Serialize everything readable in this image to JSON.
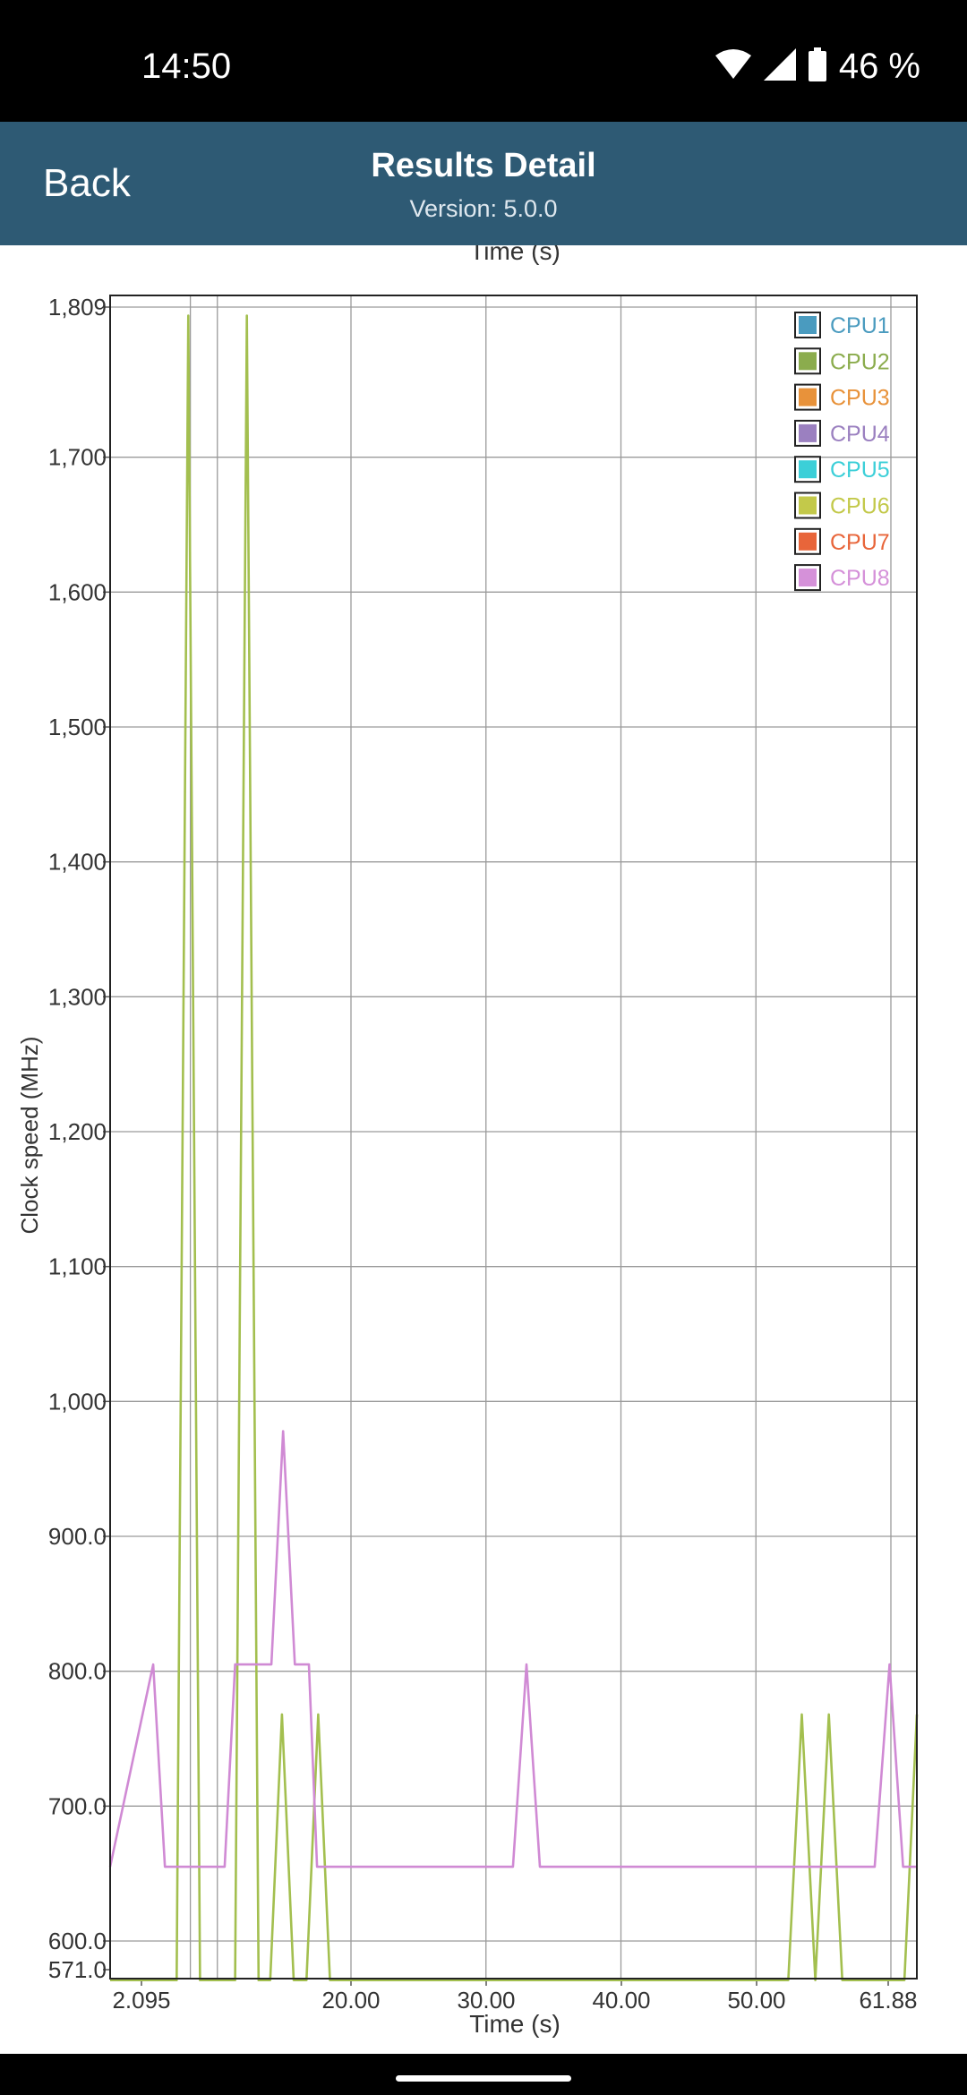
{
  "status": {
    "time": "14:50",
    "battery": "46 %"
  },
  "appbar": {
    "back_label": "Back",
    "title": "Results Detail",
    "subtitle": "Version: 5.0.0"
  },
  "chart_data": {
    "type": "line",
    "top_label": "Time (s)",
    "xlabel": "Time (s)",
    "ylabel": "Clock speed (MHz)",
    "xlim": [
      2.095,
      61.88
    ],
    "ylim": [
      571.0,
      1809
    ],
    "x_ticks": [
      "2.095",
      "20.00",
      "30.00",
      "40.00",
      "50.00",
      "61.88"
    ],
    "y_ticks": [
      "571.0",
      "600.0",
      "700.0",
      "800.0",
      "900.0",
      "1,000",
      "1,100",
      "1,200",
      "1,300",
      "1,400",
      "1,500",
      "1,600",
      "1,700",
      "1,809"
    ],
    "grid": true,
    "legend_position": "top-right",
    "legend": [
      {
        "name": "CPU1",
        "color": "#4a9bbf"
      },
      {
        "name": "CPU2",
        "color": "#8bac4d"
      },
      {
        "name": "CPU3",
        "color": "#e8923a"
      },
      {
        "name": "CPU4",
        "color": "#9b80c0"
      },
      {
        "name": "CPU5",
        "color": "#3ccfd8"
      },
      {
        "name": "CPU6",
        "color": "#c3c94a"
      },
      {
        "name": "CPU7",
        "color": "#e8653a"
      },
      {
        "name": "CPU8",
        "color": "#d591d9"
      }
    ],
    "series": [
      {
        "name": "CPU2",
        "color": "#a3bf4f",
        "x": [
          2.095,
          5.1,
          6.1,
          7.1,
          8.1,
          10.1,
          11.1,
          12.1,
          13.1,
          14.1,
          15.1,
          16.2,
          17.2,
          18.2,
          52.4,
          53.4,
          54.4,
          55.4,
          56.4,
          61.0,
          61.88
        ],
        "y": [
          571,
          571,
          1805,
          571,
          571,
          571,
          1805,
          571,
          571,
          768,
          571,
          571,
          768,
          571,
          571,
          768,
          571,
          768,
          571,
          571,
          768
        ]
      },
      {
        "name": "CPU8",
        "color": "#d08ad4",
        "x": [
          2.095,
          3.1,
          4.1,
          7.1,
          9.2,
          10.1,
          13.2,
          14.2,
          15.2,
          16.4,
          17.1,
          32.0,
          33.0,
          34.0,
          58.8,
          59.9,
          60.9,
          61.88
        ],
        "y": [
          655,
          805,
          655,
          655,
          655,
          805,
          805,
          978,
          805,
          805,
          655,
          655,
          805,
          655,
          655,
          805,
          655,
          655
        ]
      }
    ]
  }
}
